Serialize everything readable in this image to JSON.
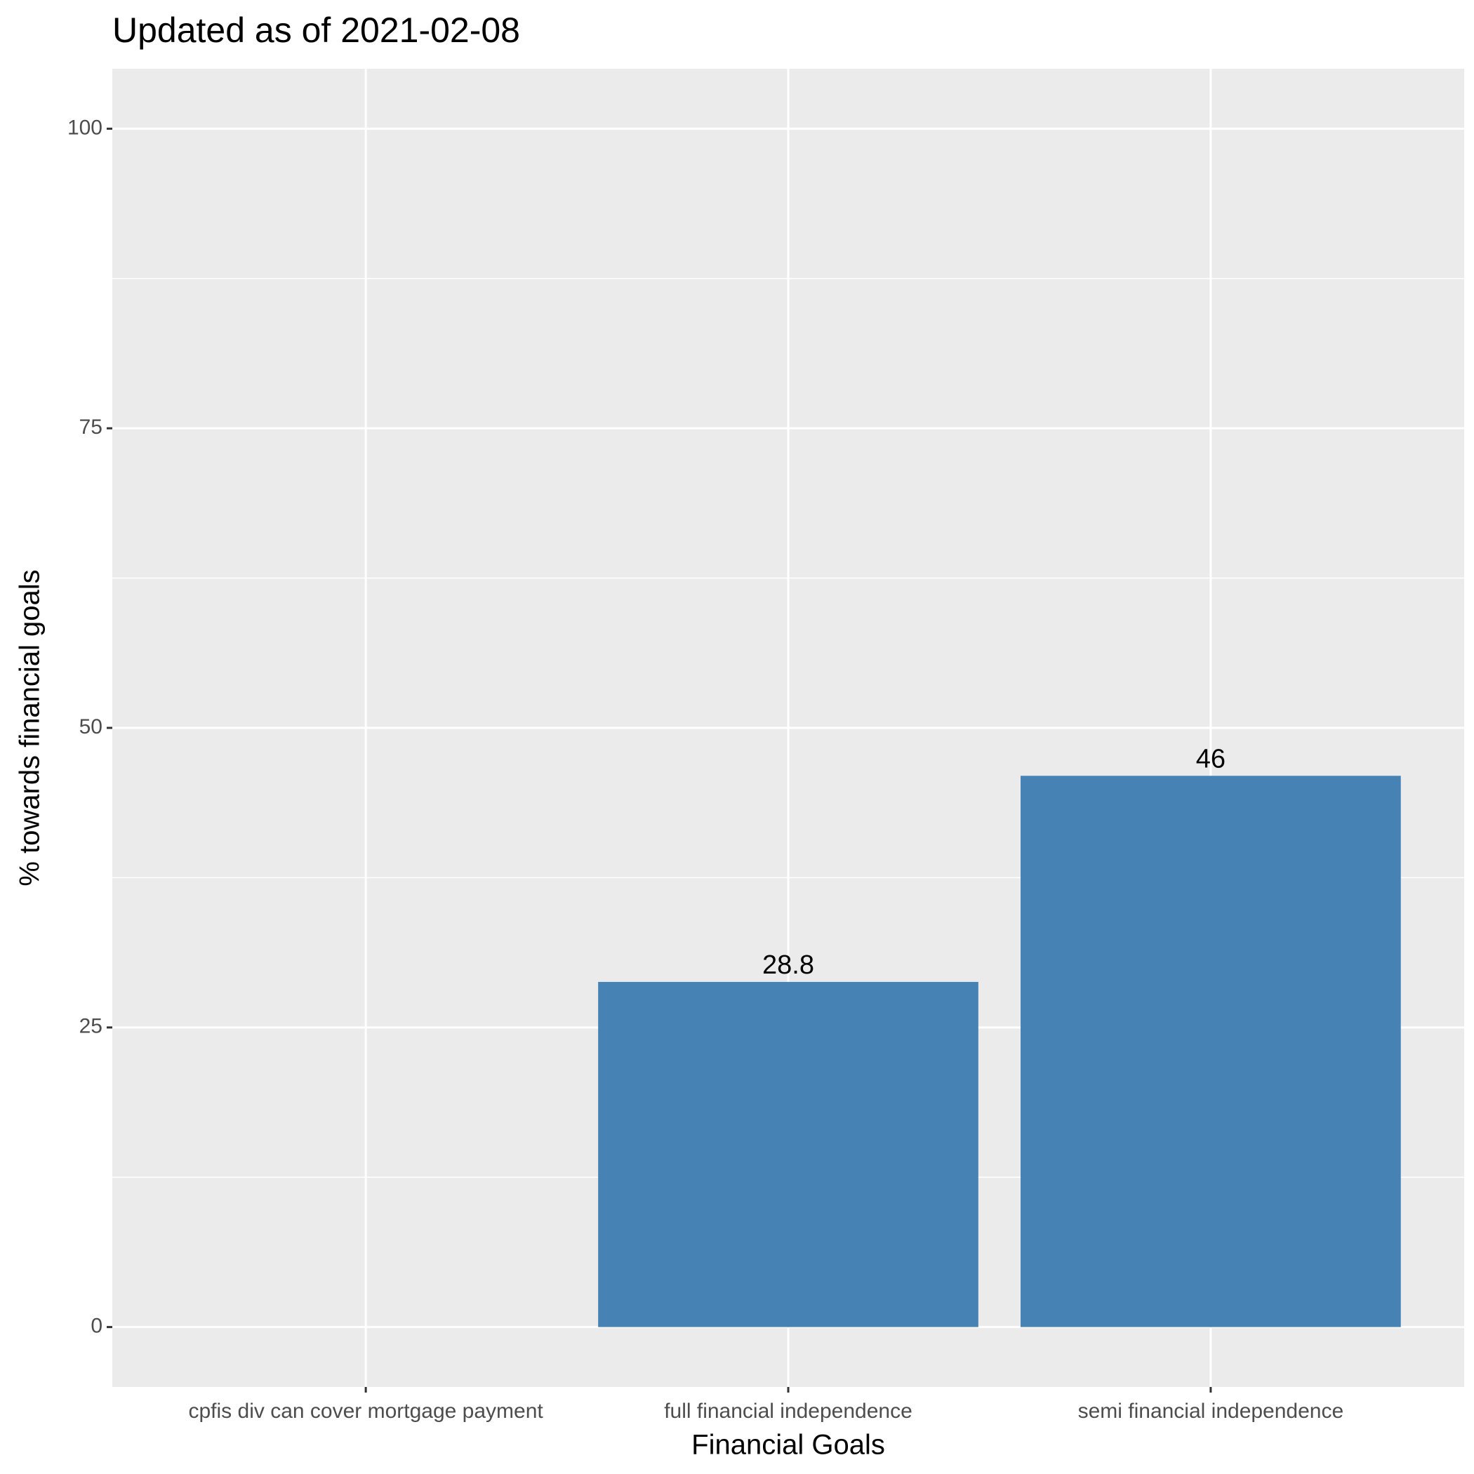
{
  "chart_data": {
    "type": "bar",
    "title": "Updated as of 2021-02-08",
    "x_label": "Financial Goals",
    "y_label": "% towards financial goals",
    "categories": [
      "cpfis div can cover mortgage payment",
      "full financial independence",
      "semi financial independence"
    ],
    "values": [
      null,
      28.8,
      46
    ],
    "color": "#4682b4",
    "ylim": [
      -5,
      105
    ],
    "yticks": [
      0,
      25,
      50,
      75,
      100
    ],
    "grid": true,
    "minor_grid": true
  }
}
